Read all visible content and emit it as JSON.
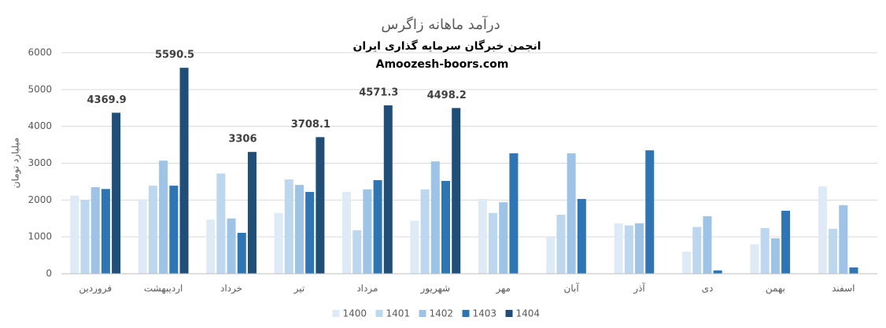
{
  "chart_data": {
    "type": "bar",
    "title": "درآمد ماهانه زاگرس",
    "subtitle": "انجمن خبرگان سرمایه گذاری ایران",
    "source": "Amoozesh-boors.com",
    "y_label": "میلیارد تومان",
    "categories": [
      "فروردین",
      "اردیبهشت",
      "خرداد",
      "تیر",
      "مرداد",
      "شهریور",
      "مهر",
      "آبان",
      "آذر",
      "دی",
      "بهمن",
      "اسفند"
    ],
    "series": [
      {
        "name": "1400",
        "color": "#deebf7",
        "values": [
          2120,
          2020,
          1470,
          1650,
          2220,
          1440,
          2030,
          1000,
          1370,
          600,
          800,
          2370
        ]
      },
      {
        "name": "1401",
        "color": "#bdd7ee",
        "values": [
          2000,
          2390,
          2720,
          2560,
          1180,
          2290,
          1650,
          1600,
          1310,
          1270,
          1240,
          1220
        ]
      },
      {
        "name": "1402",
        "color": "#9dc3e6",
        "values": [
          2350,
          3070,
          1500,
          2410,
          2290,
          3050,
          1940,
          3270,
          1370,
          1560,
          960,
          1860
        ]
      },
      {
        "name": "1403",
        "color": "#2e75b6",
        "values": [
          2300,
          2390,
          1110,
          2220,
          2540,
          2520,
          3270,
          2030,
          3350,
          90,
          1710,
          170
        ]
      },
      {
        "name": "1404",
        "color": "#1f4e79",
        "values": [
          4369.9,
          5590.5,
          3306,
          3708.1,
          4571.3,
          4498.2,
          null,
          null,
          null,
          null,
          null,
          null
        ],
        "data_labels": true
      }
    ],
    "ylim": [
      0,
      6000
    ],
    "yticks": [
      0,
      1000,
      2000,
      3000,
      4000,
      5000,
      6000
    ],
    "grid": true,
    "legend": "bottom"
  }
}
